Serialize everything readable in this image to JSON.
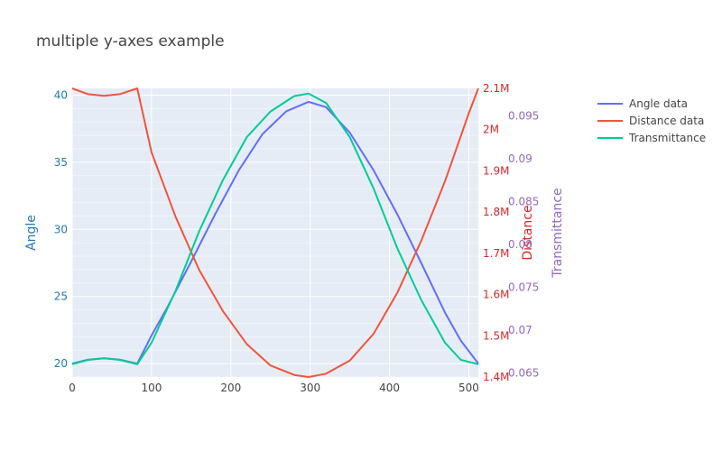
{
  "chart_data": {
    "type": "line",
    "title": "multiple y-axes example",
    "x": {
      "range": [
        0,
        512
      ],
      "ticks": [
        0,
        100,
        200,
        300,
        400,
        500
      ],
      "tick_labels": [
        "0",
        "100",
        "200",
        "300",
        "400",
        "500"
      ],
      "grid": true
    },
    "y_axes": [
      {
        "id": "y1",
        "title": "Angle",
        "side": "left",
        "color": "#1f77b4",
        "range": [
          19,
          40.5
        ],
        "ticks": [
          20,
          25,
          30,
          35,
          40
        ],
        "tick_labels": [
          "20",
          "25",
          "30",
          "35",
          "40"
        ]
      },
      {
        "id": "y2",
        "title": "Distance",
        "side": "right",
        "color": "#d62728",
        "range": [
          1400000,
          2100000
        ],
        "ticks": [
          1400000,
          1500000,
          1600000,
          1700000,
          1800000,
          1900000,
          2000000,
          2100000
        ],
        "tick_labels": [
          "1.4M",
          "1.5M",
          "1.6M",
          "1.7M",
          "1.8M",
          "1.9M",
          "2M",
          "2.1M"
        ]
      },
      {
        "id": "y3",
        "title": "Transmittance",
        "side": "right",
        "color": "#9467bd",
        "range": [
          0.0645,
          0.0982
        ],
        "ticks": [
          0.065,
          0.07,
          0.075,
          0.08,
          0.085,
          0.09,
          0.095
        ],
        "tick_labels": [
          "0.065",
          "0.07",
          "0.075",
          "0.08",
          "0.085",
          "0.09",
          "0.095"
        ]
      }
    ],
    "series": [
      {
        "name": "Angle data",
        "axis": "y1",
        "color": "#636efa",
        "x": [
          0,
          20,
          40,
          60,
          82,
          100,
          120,
          150,
          180,
          210,
          240,
          270,
          298,
          320,
          350,
          380,
          410,
          440,
          470,
          490,
          512
        ],
        "y": [
          20,
          20.3,
          20.4,
          20.3,
          20,
          22.1,
          24.2,
          27.6,
          31.1,
          34.4,
          37.1,
          38.8,
          39.5,
          39.1,
          37.2,
          34.4,
          31.1,
          27.5,
          23.8,
          21.7,
          20
        ]
      },
      {
        "name": "Distance data",
        "axis": "y2",
        "color": "#ef553b",
        "x": [
          0,
          20,
          40,
          60,
          82,
          100,
          130,
          160,
          190,
          220,
          250,
          280,
          298,
          320,
          350,
          380,
          410,
          440,
          470,
          500,
          512
        ],
        "y": [
          2100000,
          2086000,
          2082000,
          2086000,
          2100000,
          1945000,
          1790000,
          1660000,
          1560000,
          1480000,
          1428000,
          1405000,
          1400000,
          1408000,
          1440000,
          1505000,
          1605000,
          1730000,
          1875000,
          2040000,
          2100000
        ]
      },
      {
        "name": "Transmittance",
        "axis": "y3",
        "color": "#00cc96",
        "x": [
          0,
          20,
          40,
          60,
          82,
          100,
          130,
          160,
          190,
          220,
          250,
          280,
          298,
          320,
          350,
          380,
          410,
          440,
          470,
          490,
          512
        ],
        "y": [
          0.066,
          0.0665,
          0.0667,
          0.0665,
          0.066,
          0.0685,
          0.0745,
          0.0815,
          0.0875,
          0.0925,
          0.0955,
          0.0973,
          0.0976,
          0.0965,
          0.0925,
          0.0865,
          0.0795,
          0.0735,
          0.0685,
          0.0665,
          0.066
        ]
      }
    ],
    "legend": {
      "placement": "top-right",
      "entries": [
        "Angle data",
        "Distance data",
        "Transmittance"
      ]
    }
  }
}
